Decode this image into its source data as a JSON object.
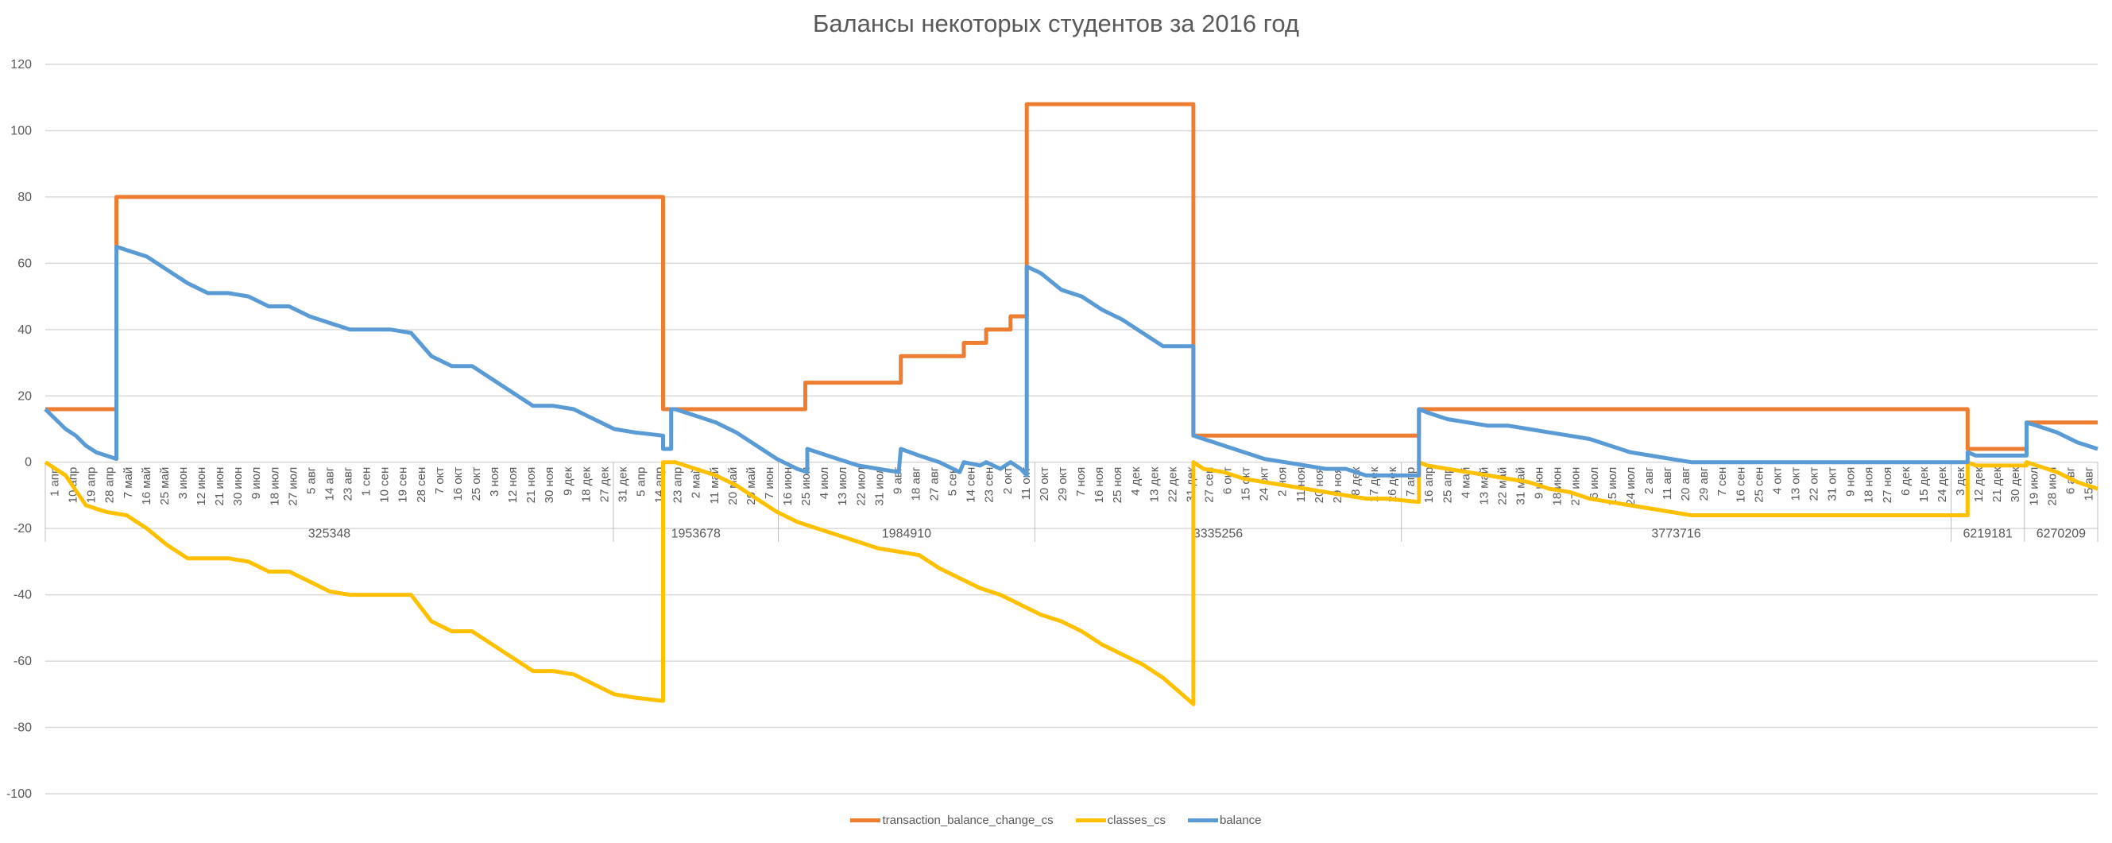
{
  "chart_data": {
    "type": "line",
    "title": "Балансы некоторых студентов за 2016 год",
    "xlabel": "",
    "ylabel": "",
    "ylim": [
      -100,
      120
    ],
    "yticks": [
      -100,
      -80,
      -60,
      -40,
      -20,
      0,
      20,
      40,
      60,
      80,
      100,
      120
    ],
    "grid": true,
    "legend_position": "bottom",
    "groups": [
      {
        "label": "325348",
        "ticks": [
          "1 апр",
          "10 апр",
          "19 апр",
          "28 апр",
          "7 май",
          "16 май",
          "25 май",
          "3 июн",
          "12 июн",
          "21 июн",
          "30 июн",
          "9 июл",
          "18 июл",
          "27 июл",
          "5 авг",
          "14 авг",
          "23 авг",
          "1 сен",
          "10 сен",
          "19 сен",
          "28 сен",
          "7 окт",
          "16 окт",
          "25 окт",
          "3 ноя",
          "12 ноя",
          "21 ноя",
          "30 ноя",
          "9 дек",
          "18 дек",
          "27 дек"
        ]
      },
      {
        "label": "1953678",
        "ticks": [
          "31 дек",
          "5 апр",
          "14 апр",
          "23 апр",
          "2 май",
          "11 май",
          "20 май",
          "29 май",
          "7 июн"
        ]
      },
      {
        "label": "1984910",
        "ticks": [
          "16 июн",
          "25 июн",
          "4 июл",
          "13 июл",
          "22 июл",
          "31 июл",
          "9 авг",
          "18 авг",
          "27 авг",
          "5 сен",
          "14 сен",
          "23 сен",
          "2 окт",
          "11 окт"
        ]
      },
      {
        "label": "3335256",
        "ticks": [
          "20 окт",
          "29 окт",
          "7 ноя",
          "16 ноя",
          "25 ноя",
          "4 дек",
          "13 дек",
          "22 дек",
          "31 дек",
          "27 сен",
          "6 окт",
          "15 окт",
          "24 окт",
          "2 ноя",
          "11 ноя",
          "20 ноя",
          "29 ноя",
          "8 дек",
          "17 дек",
          "26 дек"
        ]
      },
      {
        "label": "3773716",
        "ticks": [
          "7 апр",
          "16 апр",
          "25 апр",
          "4 май",
          "13 май",
          "22 май",
          "31 май",
          "9 июн",
          "18 июн",
          "27 июн",
          "6 июл",
          "15 июл",
          "24 июл",
          "2 авг",
          "11 авг",
          "20 авг",
          "29 авг",
          "7 сен",
          "16 сен",
          "25 сен",
          "4 окт",
          "13 окт",
          "22 окт",
          "31 окт",
          "9 ноя",
          "18 ноя",
          "27 ноя",
          "6 дек",
          "15 дек",
          "24 дек"
        ]
      },
      {
        "label": "6219181",
        "ticks": [
          "3 дек",
          "12 дек",
          "21 дек",
          "30 дек"
        ]
      },
      {
        "label": "6270209",
        "ticks": [
          "19 июл",
          "28 июл",
          "6 авг",
          "15 авг"
        ]
      }
    ],
    "x_range": [
      0,
      101
    ],
    "series": [
      {
        "name": "transaction_balance_change_cs",
        "color": "#ED7D31",
        "points": [
          [
            0,
            16
          ],
          [
            3.5,
            16
          ],
          [
            3.5,
            80
          ],
          [
            30.4,
            80
          ],
          [
            30.4,
            16
          ],
          [
            37.4,
            16
          ],
          [
            37.4,
            24
          ],
          [
            42.1,
            24
          ],
          [
            42.1,
            32
          ],
          [
            45.2,
            32
          ],
          [
            45.2,
            36
          ],
          [
            46.3,
            36
          ],
          [
            46.3,
            40
          ],
          [
            47.5,
            40
          ],
          [
            47.5,
            44
          ],
          [
            48.3,
            44
          ],
          [
            48.3,
            108
          ],
          [
            56.5,
            108
          ],
          [
            56.5,
            8
          ],
          [
            67.6,
            8
          ],
          [
            67.6,
            16
          ],
          [
            94.6,
            16
          ],
          [
            94.6,
            4
          ],
          [
            97.5,
            4
          ],
          [
            97.5,
            12
          ],
          [
            101,
            12
          ]
        ]
      },
      {
        "name": "classes_cs",
        "color": "#FFC000",
        "points": [
          [
            0,
            0
          ],
          [
            1,
            -4
          ],
          [
            2,
            -13
          ],
          [
            3,
            -15
          ],
          [
            4,
            -16
          ],
          [
            5,
            -20
          ],
          [
            6,
            -25
          ],
          [
            7,
            -29
          ],
          [
            8,
            -29
          ],
          [
            9,
            -29
          ],
          [
            10,
            -30
          ],
          [
            11,
            -33
          ],
          [
            12,
            -33
          ],
          [
            13,
            -36
          ],
          [
            14,
            -39
          ],
          [
            15,
            -40
          ],
          [
            17,
            -40
          ],
          [
            18,
            -40
          ],
          [
            19,
            -48
          ],
          [
            20,
            -51
          ],
          [
            21,
            -51
          ],
          [
            22,
            -55
          ],
          [
            23,
            -59
          ],
          [
            24,
            -63
          ],
          [
            25,
            -63
          ],
          [
            26,
            -64
          ],
          [
            27,
            -67
          ],
          [
            28,
            -70
          ],
          [
            29,
            -71
          ],
          [
            30.4,
            -72
          ],
          [
            30.4,
            0
          ],
          [
            31,
            0
          ],
          [
            32,
            -2
          ],
          [
            33,
            -4
          ],
          [
            34,
            -7
          ],
          [
            35,
            -11
          ],
          [
            36,
            -15
          ],
          [
            37,
            -18
          ],
          [
            38,
            -20
          ],
          [
            39,
            -22
          ],
          [
            40,
            -24
          ],
          [
            41,
            -26
          ],
          [
            42,
            -27
          ],
          [
            43,
            -28
          ],
          [
            44,
            -32
          ],
          [
            45,
            -35
          ],
          [
            46,
            -38
          ],
          [
            47,
            -40
          ],
          [
            48,
            -43
          ],
          [
            49,
            -46
          ],
          [
            50,
            -48
          ],
          [
            51,
            -51
          ],
          [
            52,
            -55
          ],
          [
            53,
            -58
          ],
          [
            54,
            -61
          ],
          [
            55,
            -65
          ],
          [
            56.5,
            -73
          ],
          [
            56.5,
            0
          ],
          [
            57,
            -2
          ],
          [
            58,
            -3
          ],
          [
            59,
            -5
          ],
          [
            60,
            -6
          ],
          [
            61,
            -7
          ],
          [
            62,
            -8
          ],
          [
            63,
            -9
          ],
          [
            64,
            -10
          ],
          [
            65,
            -11
          ],
          [
            66,
            -11
          ],
          [
            67.6,
            -12
          ],
          [
            67.6,
            0
          ],
          [
            68,
            -1
          ],
          [
            69,
            -2
          ],
          [
            70,
            -3
          ],
          [
            71,
            -4
          ],
          [
            72,
            -5
          ],
          [
            73,
            -6
          ],
          [
            74,
            -8
          ],
          [
            75,
            -9
          ],
          [
            76,
            -11
          ],
          [
            77,
            -12
          ],
          [
            78,
            -13
          ],
          [
            79,
            -14
          ],
          [
            80,
            -15
          ],
          [
            81,
            -16
          ],
          [
            82,
            -16
          ],
          [
            94.6,
            -16
          ],
          [
            94.6,
            0
          ],
          [
            95,
            -1
          ],
          [
            96,
            -1
          ],
          [
            97.5,
            -1
          ],
          [
            97.5,
            0
          ],
          [
            98,
            -1
          ],
          [
            99,
            -3
          ],
          [
            100,
            -6
          ],
          [
            101,
            -8
          ]
        ]
      },
      {
        "name": "balance",
        "color": "#5B9BD5",
        "points": [
          [
            0,
            16
          ],
          [
            0.5,
            13
          ],
          [
            1,
            10
          ],
          [
            1.5,
            8
          ],
          [
            2,
            5
          ],
          [
            2.5,
            3
          ],
          [
            3,
            2
          ],
          [
            3.5,
            1
          ],
          [
            3.5,
            65
          ],
          [
            4,
            64
          ],
          [
            5,
            62
          ],
          [
            6,
            58
          ],
          [
            7,
            54
          ],
          [
            8,
            51
          ],
          [
            9,
            51
          ],
          [
            10,
            50
          ],
          [
            11,
            47
          ],
          [
            12,
            47
          ],
          [
            13,
            44
          ],
          [
            14,
            42
          ],
          [
            15,
            40
          ],
          [
            17,
            40
          ],
          [
            18,
            39
          ],
          [
            19,
            32
          ],
          [
            20,
            29
          ],
          [
            21,
            29
          ],
          [
            22,
            25
          ],
          [
            23,
            21
          ],
          [
            24,
            17
          ],
          [
            25,
            17
          ],
          [
            26,
            16
          ],
          [
            27,
            13
          ],
          [
            28,
            10
          ],
          [
            29,
            9
          ],
          [
            30.4,
            8
          ],
          [
            30.4,
            4
          ],
          [
            30.8,
            4
          ],
          [
            30.8,
            16
          ],
          [
            31,
            16
          ],
          [
            32,
            14
          ],
          [
            33,
            12
          ],
          [
            34,
            9
          ],
          [
            35,
            5
          ],
          [
            36,
            1
          ],
          [
            37,
            -2
          ],
          [
            37.5,
            -3
          ],
          [
            37.5,
            4
          ],
          [
            38,
            3
          ],
          [
            39,
            1
          ],
          [
            40,
            -1
          ],
          [
            41,
            -2
          ],
          [
            42,
            -3
          ],
          [
            42.1,
            4
          ],
          [
            43,
            2
          ],
          [
            44,
            0
          ],
          [
            45,
            -3
          ],
          [
            45.2,
            0
          ],
          [
            46,
            -1
          ],
          [
            46.3,
            0
          ],
          [
            47,
            -2
          ],
          [
            47.5,
            0
          ],
          [
            48,
            -2
          ],
          [
            48.3,
            -4
          ],
          [
            48.3,
            59
          ],
          [
            49,
            57
          ],
          [
            50,
            52
          ],
          [
            51,
            50
          ],
          [
            52,
            46
          ],
          [
            53,
            43
          ],
          [
            54,
            39
          ],
          [
            55,
            35
          ],
          [
            56.5,
            35
          ],
          [
            56.5,
            8
          ],
          [
            57,
            7
          ],
          [
            58,
            5
          ],
          [
            59,
            3
          ],
          [
            60,
            1
          ],
          [
            61,
            0
          ],
          [
            62,
            -1
          ],
          [
            63,
            -2
          ],
          [
            64,
            -2
          ],
          [
            65,
            -4
          ],
          [
            66,
            -4
          ],
          [
            67.6,
            -4
          ],
          [
            67.6,
            16
          ],
          [
            68,
            15
          ],
          [
            69,
            13
          ],
          [
            70,
            12
          ],
          [
            71,
            11
          ],
          [
            72,
            11
          ],
          [
            73,
            10
          ],
          [
            74,
            9
          ],
          [
            75,
            8
          ],
          [
            76,
            7
          ],
          [
            77,
            5
          ],
          [
            78,
            3
          ],
          [
            79,
            2
          ],
          [
            80,
            1
          ],
          [
            81,
            0
          ],
          [
            82,
            0
          ],
          [
            94.6,
            0
          ],
          [
            94.6,
            3
          ],
          [
            95,
            2
          ],
          [
            97.5,
            2
          ],
          [
            97.5,
            12
          ],
          [
            98,
            11
          ],
          [
            99,
            9
          ],
          [
            100,
            6
          ],
          [
            101,
            4
          ]
        ]
      }
    ]
  }
}
